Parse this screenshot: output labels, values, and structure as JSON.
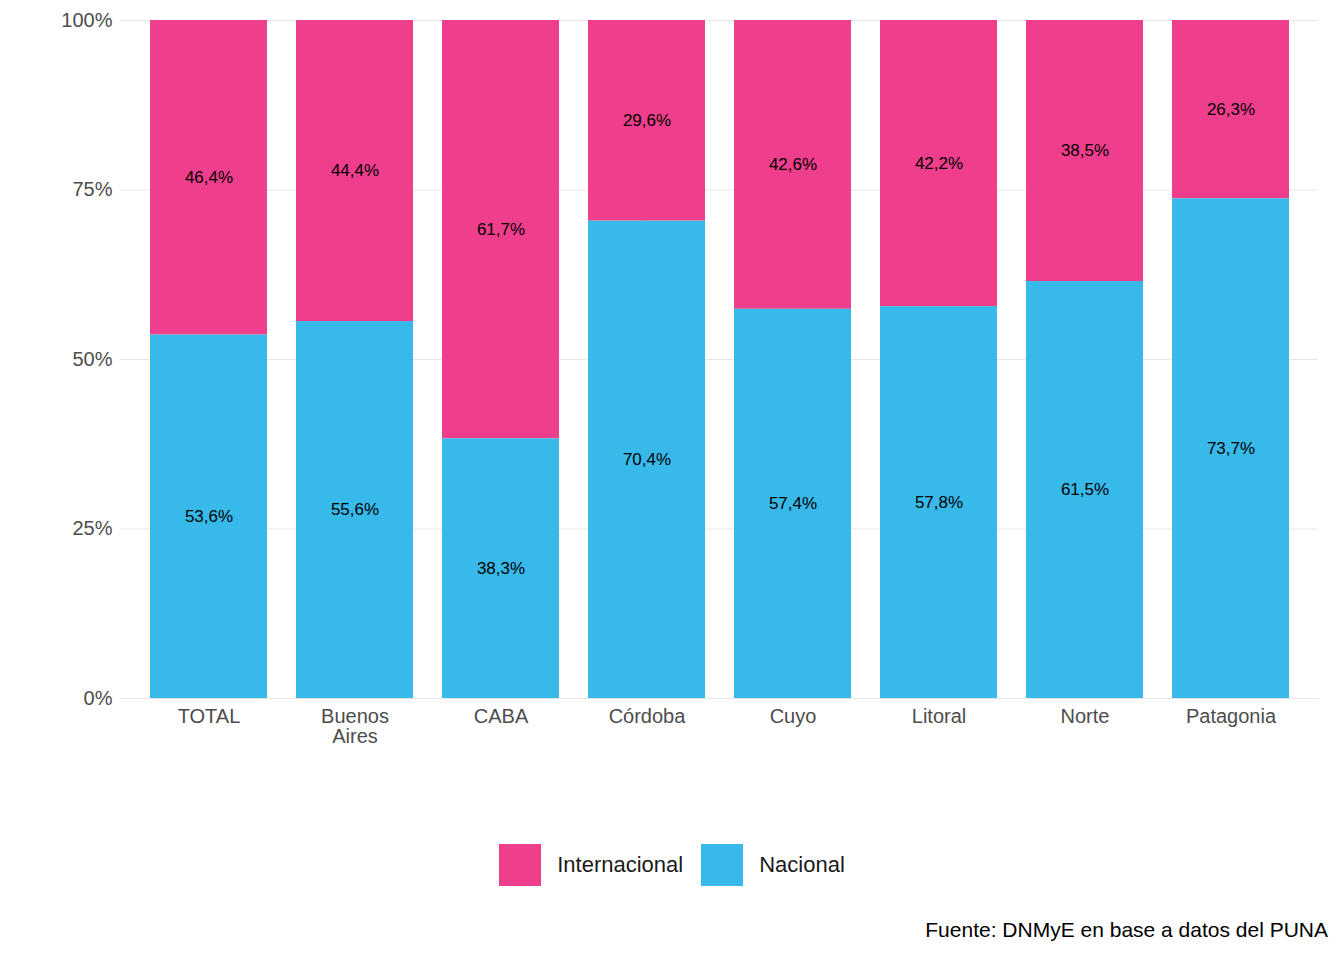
{
  "chart_data": {
    "type": "bar",
    "stacked": true,
    "data_labels": true,
    "grid": true,
    "legend": "bottom",
    "caption": "Fuente: DNMyE en base a datos del PUNA",
    "categories": [
      "TOTAL",
      "Buenos Aires",
      "CABA",
      "Córdoba",
      "Cuyo",
      "Litoral",
      "Norte",
      "Patagonia"
    ],
    "series": [
      {
        "name": "Internacional",
        "color": "#ef3e8c",
        "values": [
          46.4,
          44.4,
          61.7,
          29.6,
          42.6,
          42.2,
          38.5,
          26.3
        ],
        "value_labels": [
          "46,4%",
          "44,4%",
          "61,7%",
          "29,6%",
          "42,6%",
          "42,2%",
          "38,5%",
          "26,3%"
        ]
      },
      {
        "name": "Nacional",
        "color": "#37b9ea",
        "values": [
          53.6,
          55.6,
          38.3,
          70.4,
          57.4,
          57.8,
          61.5,
          73.7
        ],
        "value_labels": [
          "53,6%",
          "55,6%",
          "38,3%",
          "70,4%",
          "57,4%",
          "57,8%",
          "61,5%",
          "73,7%"
        ]
      }
    ],
    "ylim": [
      0,
      100
    ],
    "yticks": [
      {
        "value": 0,
        "label": "0%"
      },
      {
        "value": 25,
        "label": "25%"
      },
      {
        "value": 50,
        "label": "50%"
      },
      {
        "value": 75,
        "label": "75%"
      },
      {
        "value": 100,
        "label": "100%"
      }
    ]
  }
}
